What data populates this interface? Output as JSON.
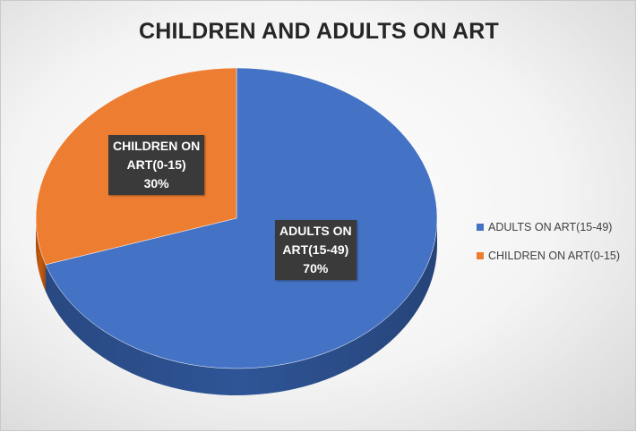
{
  "chart_data": {
    "type": "pie",
    "title": "CHILDREN AND ADULTS ON ART",
    "categories": [
      "ADULTS ON ART(15-49)",
      "CHILDREN ON ART(0-15)"
    ],
    "values": [
      70,
      30
    ],
    "data_labels": [
      {
        "text": "ADULTS ON\nART(15-49)",
        "percent": "70%"
      },
      {
        "text": "CHILDREN ON\nART(0-15)",
        "percent": "30%"
      }
    ],
    "colors": [
      "#4472C4",
      "#ED7D31"
    ],
    "side_colors": [
      "#2F5597",
      "#C55A11"
    ],
    "legend_position": "right",
    "style": "3d"
  }
}
